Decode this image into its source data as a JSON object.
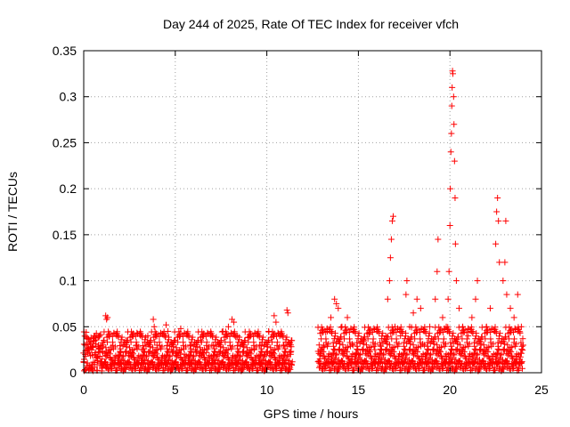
{
  "chart_data": {
    "type": "scatter",
    "title": "Day 244 of 2025, Rate Of TEC Index for receiver vfch",
    "xlabel": "GPS time / hours",
    "ylabel": "ROTI / TECUs",
    "xlim": [
      0,
      25
    ],
    "ylim": [
      0,
      0.35
    ],
    "xticks": [
      0,
      5,
      10,
      15,
      20,
      25
    ],
    "xtick_labels": [
      "0",
      "5",
      "10",
      "15",
      "20",
      "25"
    ],
    "yticks": [
      0,
      0.05,
      0.1,
      0.15,
      0.2,
      0.25,
      0.3,
      0.35
    ],
    "ytick_labels": [
      "0",
      "0.05",
      "0.1",
      "0.15",
      "0.2",
      "0.25",
      "0.3",
      "0.35"
    ],
    "grid": true,
    "marker": "+",
    "color": "#ff0000",
    "series": [
      {
        "name": "ROTI",
        "points": [
          [
            0.0,
            0.012
          ],
          [
            0.2,
            0.025
          ],
          [
            0.4,
            0.038
          ],
          [
            0.6,
            0.02
          ],
          [
            0.8,
            0.03
          ],
          [
            1.0,
            0.015
          ],
          [
            1.2,
            0.062
          ],
          [
            1.25,
            0.058
          ],
          [
            1.3,
            0.06
          ],
          [
            1.5,
            0.028
          ],
          [
            1.8,
            0.04
          ],
          [
            2.0,
            0.022
          ],
          [
            2.3,
            0.035
          ],
          [
            2.6,
            0.018
          ],
          [
            2.9,
            0.03
          ],
          [
            3.2,
            0.025
          ],
          [
            3.5,
            0.04
          ],
          [
            3.8,
            0.058
          ],
          [
            3.85,
            0.05
          ],
          [
            4.0,
            0.03
          ],
          [
            4.3,
            0.042
          ],
          [
            4.5,
            0.052
          ],
          [
            4.6,
            0.045
          ],
          [
            4.8,
            0.025
          ],
          [
            5.0,
            0.035
          ],
          [
            5.3,
            0.048
          ],
          [
            5.5,
            0.02
          ],
          [
            5.8,
            0.03
          ],
          [
            6.1,
            0.025
          ],
          [
            6.4,
            0.035
          ],
          [
            6.7,
            0.022
          ],
          [
            7.0,
            0.03
          ],
          [
            7.3,
            0.02
          ],
          [
            7.6,
            0.045
          ],
          [
            7.9,
            0.05
          ],
          [
            8.1,
            0.058
          ],
          [
            8.2,
            0.055
          ],
          [
            8.4,
            0.04
          ],
          [
            8.7,
            0.03
          ],
          [
            9.0,
            0.038
          ],
          [
            9.3,
            0.025
          ],
          [
            9.6,
            0.03
          ],
          [
            9.9,
            0.02
          ],
          [
            10.1,
            0.045
          ],
          [
            10.4,
            0.062
          ],
          [
            10.5,
            0.055
          ],
          [
            10.7,
            0.04
          ],
          [
            10.9,
            0.03
          ],
          [
            11.1,
            0.068
          ],
          [
            11.15,
            0.065
          ],
          [
            11.3,
            0.02
          ],
          [
            12.9,
            0.015
          ],
          [
            13.1,
            0.03
          ],
          [
            13.3,
            0.045
          ],
          [
            13.5,
            0.06
          ],
          [
            13.7,
            0.08
          ],
          [
            13.8,
            0.075
          ],
          [
            13.9,
            0.07
          ],
          [
            14.1,
            0.05
          ],
          [
            14.4,
            0.06
          ],
          [
            14.7,
            0.03
          ],
          [
            15.0,
            0.02
          ],
          [
            15.3,
            0.035
          ],
          [
            15.6,
            0.042
          ],
          [
            15.9,
            0.025
          ],
          [
            16.2,
            0.03
          ],
          [
            16.5,
            0.04
          ],
          [
            16.6,
            0.08
          ],
          [
            16.7,
            0.1
          ],
          [
            16.75,
            0.125
          ],
          [
            16.8,
            0.145
          ],
          [
            16.85,
            0.165
          ],
          [
            16.9,
            0.17
          ],
          [
            17.0,
            0.05
          ],
          [
            17.3,
            0.04
          ],
          [
            17.6,
            0.085
          ],
          [
            17.65,
            0.1
          ],
          [
            17.8,
            0.05
          ],
          [
            18.0,
            0.065
          ],
          [
            18.2,
            0.08
          ],
          [
            18.4,
            0.07
          ],
          [
            18.6,
            0.03
          ],
          [
            18.9,
            0.05
          ],
          [
            19.2,
            0.08
          ],
          [
            19.3,
            0.11
          ],
          [
            19.35,
            0.145
          ],
          [
            19.6,
            0.06
          ],
          [
            19.8,
            0.05
          ],
          [
            19.9,
            0.08
          ],
          [
            19.95,
            0.11
          ],
          [
            20.0,
            0.16
          ],
          [
            20.02,
            0.2
          ],
          [
            20.05,
            0.24
          ],
          [
            20.08,
            0.26
          ],
          [
            20.1,
            0.29
          ],
          [
            20.12,
            0.31
          ],
          [
            20.14,
            0.328
          ],
          [
            20.16,
            0.325
          ],
          [
            20.2,
            0.3
          ],
          [
            20.22,
            0.27
          ],
          [
            20.25,
            0.23
          ],
          [
            20.28,
            0.19
          ],
          [
            20.3,
            0.14
          ],
          [
            20.35,
            0.1
          ],
          [
            20.5,
            0.07
          ],
          [
            20.7,
            0.05
          ],
          [
            21.0,
            0.04
          ],
          [
            21.2,
            0.06
          ],
          [
            21.4,
            0.08
          ],
          [
            21.5,
            0.1
          ],
          [
            21.7,
            0.03
          ],
          [
            22.0,
            0.05
          ],
          [
            22.2,
            0.07
          ],
          [
            22.5,
            0.14
          ],
          [
            22.55,
            0.175
          ],
          [
            22.6,
            0.19
          ],
          [
            22.65,
            0.165
          ],
          [
            22.7,
            0.12
          ],
          [
            22.9,
            0.1
          ],
          [
            23.0,
            0.12
          ],
          [
            23.05,
            0.165
          ],
          [
            23.1,
            0.085
          ],
          [
            23.3,
            0.07
          ],
          [
            23.5,
            0.06
          ],
          [
            23.7,
            0.085
          ],
          [
            23.9,
            0.05
          ],
          [
            24.0,
            0.03
          ]
        ]
      }
    ],
    "band_segments": [
      {
        "x0": 0.0,
        "x1": 11.4,
        "ymin": 0.002,
        "ymax": 0.045
      },
      {
        "x0": 12.8,
        "x1": 24.0,
        "ymin": 0.002,
        "ymax": 0.05
      }
    ]
  }
}
